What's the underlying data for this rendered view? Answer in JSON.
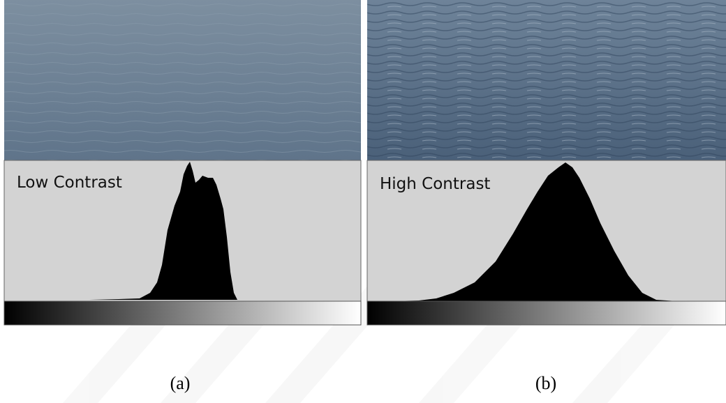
{
  "panels": [
    {
      "label": "Low Contrast",
      "caption": "(a)"
    },
    {
      "label": "High Contrast",
      "caption": "(b)"
    }
  ]
}
